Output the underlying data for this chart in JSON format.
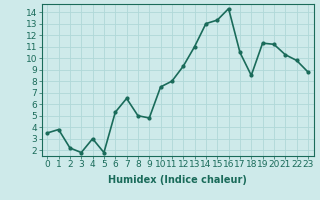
{
  "x": [
    0,
    1,
    2,
    3,
    4,
    5,
    6,
    7,
    8,
    9,
    10,
    11,
    12,
    13,
    14,
    15,
    16,
    17,
    18,
    19,
    20,
    21,
    22,
    23
  ],
  "y": [
    3.5,
    3.8,
    2.2,
    1.8,
    3.0,
    1.8,
    5.3,
    6.5,
    5.0,
    4.8,
    7.5,
    8.0,
    9.3,
    11.0,
    13.0,
    13.3,
    14.3,
    10.5,
    8.5,
    11.3,
    11.2,
    10.3,
    9.8,
    8.8
  ],
  "line_color": "#1a6b5a",
  "marker": "o",
  "marker_size": 2,
  "bg_color": "#ceeaea",
  "grid_color": "#b0d8d8",
  "xlabel": "Humidex (Indice chaleur)",
  "xlim": [
    -0.5,
    23.5
  ],
  "ylim": [
    1.5,
    14.7
  ],
  "yticks": [
    2,
    3,
    4,
    5,
    6,
    7,
    8,
    9,
    10,
    11,
    12,
    13,
    14
  ],
  "xticks": [
    0,
    1,
    2,
    3,
    4,
    5,
    6,
    7,
    8,
    9,
    10,
    11,
    12,
    13,
    14,
    15,
    16,
    17,
    18,
    19,
    20,
    21,
    22,
    23
  ],
  "xlabel_fontsize": 7,
  "tick_fontsize": 6.5,
  "line_width": 1.2
}
